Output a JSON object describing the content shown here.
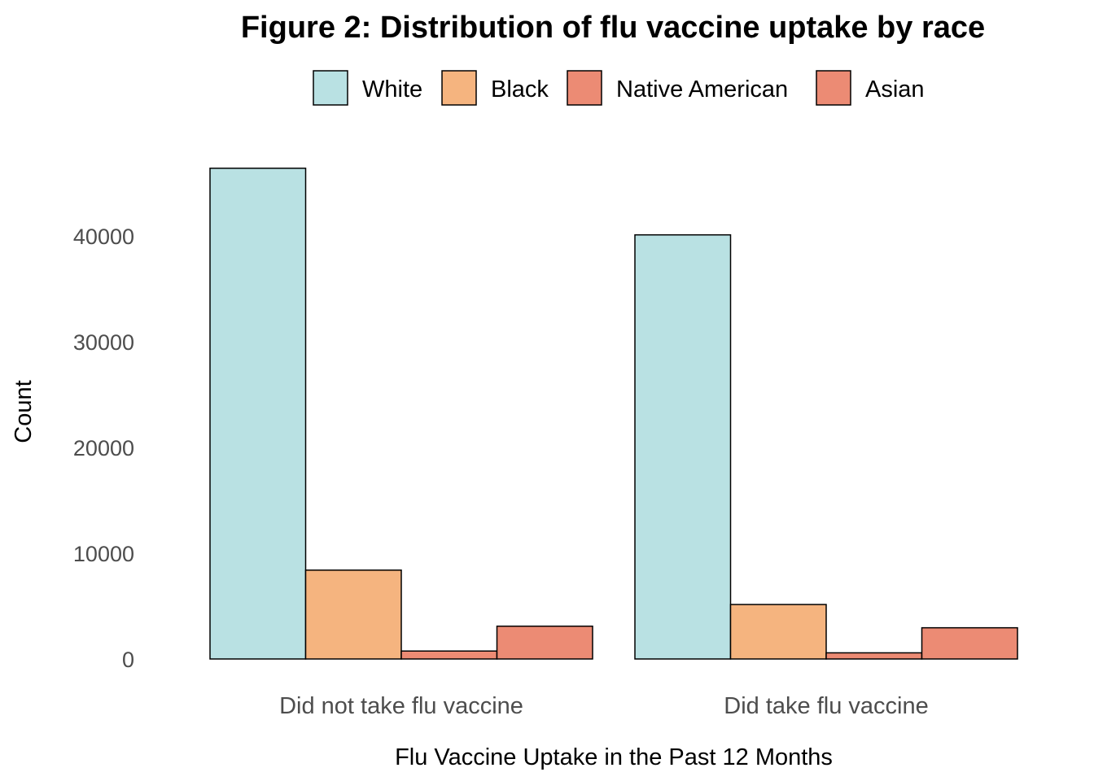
{
  "chart_data": {
    "type": "bar",
    "title": "Figure 2: Distribution of flu vaccine uptake by race",
    "xlabel": "Flu Vaccine Uptake in the Past 12 Months",
    "ylabel": "Count",
    "categories": [
      "Did not take flu vaccine",
      "Did take flu vaccine"
    ],
    "series": [
      {
        "name": "White",
        "color": "#B9E1E3",
        "values": [
          46400,
          40100
        ]
      },
      {
        "name": "Black",
        "color": "#F5B47F",
        "values": [
          8400,
          5150
        ]
      },
      {
        "name": "Native American",
        "color": "#EC8B74",
        "values": [
          750,
          580
        ]
      },
      {
        "name": "Asian",
        "color": "#EC8B74",
        "values": [
          3100,
          2950
        ]
      }
    ],
    "yticks": [
      0,
      10000,
      20000,
      30000,
      40000
    ],
    "ylim": [
      0,
      46400
    ],
    "legend_position": "top",
    "grid": false
  }
}
